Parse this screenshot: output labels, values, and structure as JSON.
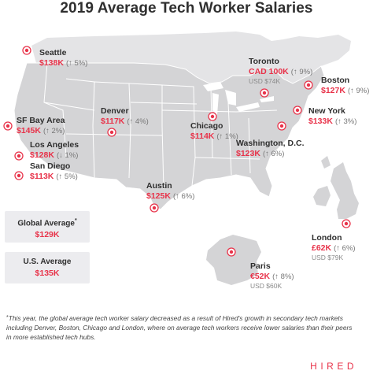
{
  "title": "2019 Average Tech Worker Salaries",
  "colors": {
    "accent": "#e8334a",
    "land": "#d4d4d6",
    "border": "#ffffff",
    "text": "#2f2f2f"
  },
  "cities": [
    {
      "name": "Seattle",
      "salary": "$138K",
      "change": "(↑ 5%)"
    },
    {
      "name": "SF Bay Area",
      "salary": "$145K",
      "change": "(↑ 2%)"
    },
    {
      "name": "Los Angeles",
      "salary": "$128K",
      "change": "(↓ 1%)"
    },
    {
      "name": "San Diego",
      "salary": "$113K",
      "change": "(↑ 5%)"
    },
    {
      "name": "Denver",
      "salary": "$117K",
      "change": "(↑ 4%)"
    },
    {
      "name": "Austin",
      "salary": "$125K",
      "change": "(↑ 6%)"
    },
    {
      "name": "Chicago",
      "salary": "$114K",
      "change": "(↑ 1%)"
    },
    {
      "name": "Toronto",
      "salary": "CAD 100K",
      "change": "(↑ 9%)",
      "usd": "USD $74K"
    },
    {
      "name": "Boston",
      "salary": "$127K",
      "change": "(↑ 9%)"
    },
    {
      "name": "New York",
      "salary": "$133K",
      "change": "(↑ 3%)"
    },
    {
      "name": "Washington, D.C.",
      "salary": "$123K",
      "change": "(↑ 6%)"
    },
    {
      "name": "London",
      "salary": "£62K",
      "change": "(↑ 6%)",
      "usd": "USD $79K"
    },
    {
      "name": "Paris",
      "salary": "€52K",
      "change": "(↑ 8%)",
      "usd": "USD $60K"
    }
  ],
  "averages": {
    "global": {
      "label": "Global Average",
      "marker": "*",
      "value": "$129K"
    },
    "us": {
      "label": "U.S. Average",
      "value": "$135K"
    }
  },
  "footnote": {
    "marker": "*",
    "text": "This year, the global average tech worker salary decreased as a result of Hired's growth in secondary tech markets including Denver, Boston, Chicago and London, where on average tech workers receive lower salaries than their peers in more established tech hubs."
  },
  "brand": "HIRED"
}
